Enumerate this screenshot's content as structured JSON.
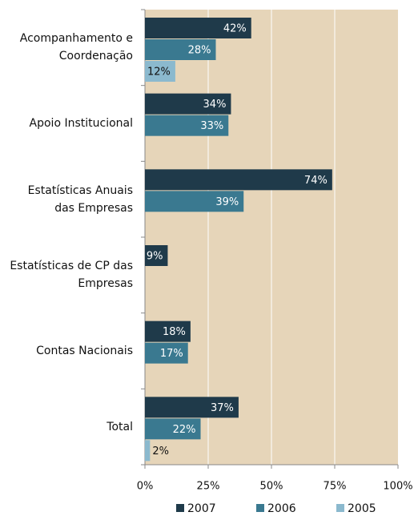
{
  "chart_data": {
    "type": "hbar",
    "categories": [
      "Acompanhamento e Coordenação",
      "Apoio Institucional",
      "Estatísticas Anuais das Empresas",
      "Estatísticas de CP das Empresas",
      "Contas Nacionais",
      "Total"
    ],
    "series": [
      {
        "name": "2007",
        "color": "#1f3a4a",
        "values": [
          42,
          34,
          74,
          9,
          18,
          37
        ],
        "value_labels": [
          "42%",
          "34%",
          "74%",
          "9%",
          "18%",
          "37%"
        ]
      },
      {
        "name": "2006",
        "color": "#3a7990",
        "values": [
          28,
          33,
          39,
          null,
          17,
          22
        ],
        "value_labels": [
          "28%",
          "33%",
          "39%",
          null,
          "17%",
          "22%"
        ]
      },
      {
        "name": "2005",
        "color": "#8bb9ce",
        "values": [
          12,
          null,
          null,
          null,
          null,
          2
        ],
        "value_labels": [
          "12%",
          null,
          null,
          null,
          null,
          "2%"
        ]
      }
    ],
    "xlim": [
      0,
      100
    ],
    "xticks": [
      {
        "value": 0,
        "label": "0%"
      },
      {
        "value": 25,
        "label": "25%"
      },
      {
        "value": 50,
        "label": "50%"
      },
      {
        "value": 75,
        "label": "75%"
      },
      {
        "value": 100,
        "label": "100%"
      }
    ],
    "grid": true,
    "legend": "bottom"
  }
}
